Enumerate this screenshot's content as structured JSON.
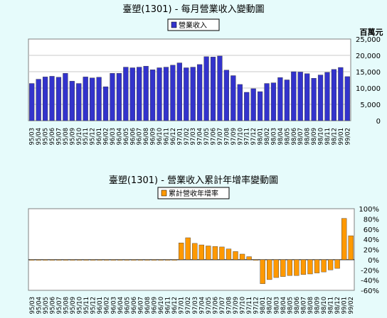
{
  "chart_data": [
    {
      "type": "bar",
      "title": "臺塑(1301) - 每月營業收入變動圖",
      "legend": "營業收入",
      "legend_position": "top-center",
      "ylabel": "百萬元",
      "ylim": [
        0,
        25000
      ],
      "yticks": [
        "25,000",
        "20,000",
        "15,000",
        "10,000",
        "5,000",
        "0"
      ],
      "grid": true,
      "color": "#3333cc",
      "categories": [
        "95/03",
        "95/04",
        "95/05",
        "95/06",
        "95/07",
        "95/08",
        "95/09",
        "95/10",
        "95/11",
        "95/12",
        "96/01",
        "96/02",
        "96/03",
        "96/04",
        "96/05",
        "96/06",
        "96/07",
        "96/08",
        "96/09",
        "96/10",
        "96/11",
        "96/12",
        "97/01",
        "97/02",
        "97/03",
        "97/04",
        "97/05",
        "97/06",
        "97/07",
        "97/08",
        "97/09",
        "97/10",
        "97/11",
        "97/12",
        "98/01",
        "98/02",
        "98/03",
        "98/04",
        "98/05",
        "98/06",
        "98/07",
        "98/08",
        "98/09",
        "98/10",
        "98/11",
        "98/12",
        "99/01",
        "99/02"
      ],
      "values": [
        11400,
        12700,
        13400,
        13600,
        13300,
        14500,
        12100,
        11400,
        13400,
        13100,
        13300,
        10400,
        14500,
        14500,
        16400,
        16200,
        16400,
        16700,
        15600,
        16200,
        16400,
        17000,
        17700,
        16200,
        16400,
        17200,
        19600,
        19500,
        19800,
        15500,
        13800,
        11100,
        8700,
        9800,
        8900,
        11400,
        11600,
        13200,
        12500,
        15000,
        14900,
        14400,
        13000,
        14000,
        14800,
        15700,
        16300,
        13500
      ]
    },
    {
      "type": "bar",
      "title": "臺塑(1301) -  營業收入累計年增率變動圖",
      "legend": "累計營收年增率",
      "legend_position": "top-center",
      "ylim": [
        -60,
        100
      ],
      "yticks": [
        "100%",
        "80%",
        "60%",
        "40%",
        "20%",
        "0%",
        "-20%",
        "-40%",
        "-60%"
      ],
      "grid": false,
      "color": "#ff9900",
      "categories": [
        "95/03",
        "95/04",
        "95/05",
        "95/06",
        "95/07",
        "95/08",
        "95/09",
        "95/10",
        "95/11",
        "95/12",
        "96/01",
        "96/02",
        "96/03",
        "96/04",
        "96/05",
        "96/06",
        "96/07",
        "96/08",
        "96/09",
        "96/10",
        "96/11",
        "96/12",
        "97/01",
        "97/02",
        "97/03",
        "97/04",
        "97/05",
        "97/06",
        "97/07",
        "97/08",
        "97/09",
        "97/10",
        "97/11",
        "97/12",
        "98/01",
        "98/02",
        "98/03",
        "98/04",
        "98/05",
        "98/06",
        "98/07",
        "98/08",
        "98/09",
        "98/10",
        "98/11",
        "98/12",
        "99/01",
        "99/02"
      ],
      "values": [
        0,
        0,
        0,
        0,
        0,
        0,
        0,
        0,
        0,
        0,
        0,
        0,
        0,
        0,
        0,
        0,
        0,
        0,
        0,
        0,
        0,
        0,
        33,
        43,
        32,
        29,
        27,
        26,
        25,
        21,
        16,
        11,
        6,
        -1,
        -47,
        -39,
        -35,
        -33,
        -31,
        -31,
        -29,
        -28,
        -26,
        -24,
        -20,
        -17,
        81,
        47
      ]
    }
  ]
}
